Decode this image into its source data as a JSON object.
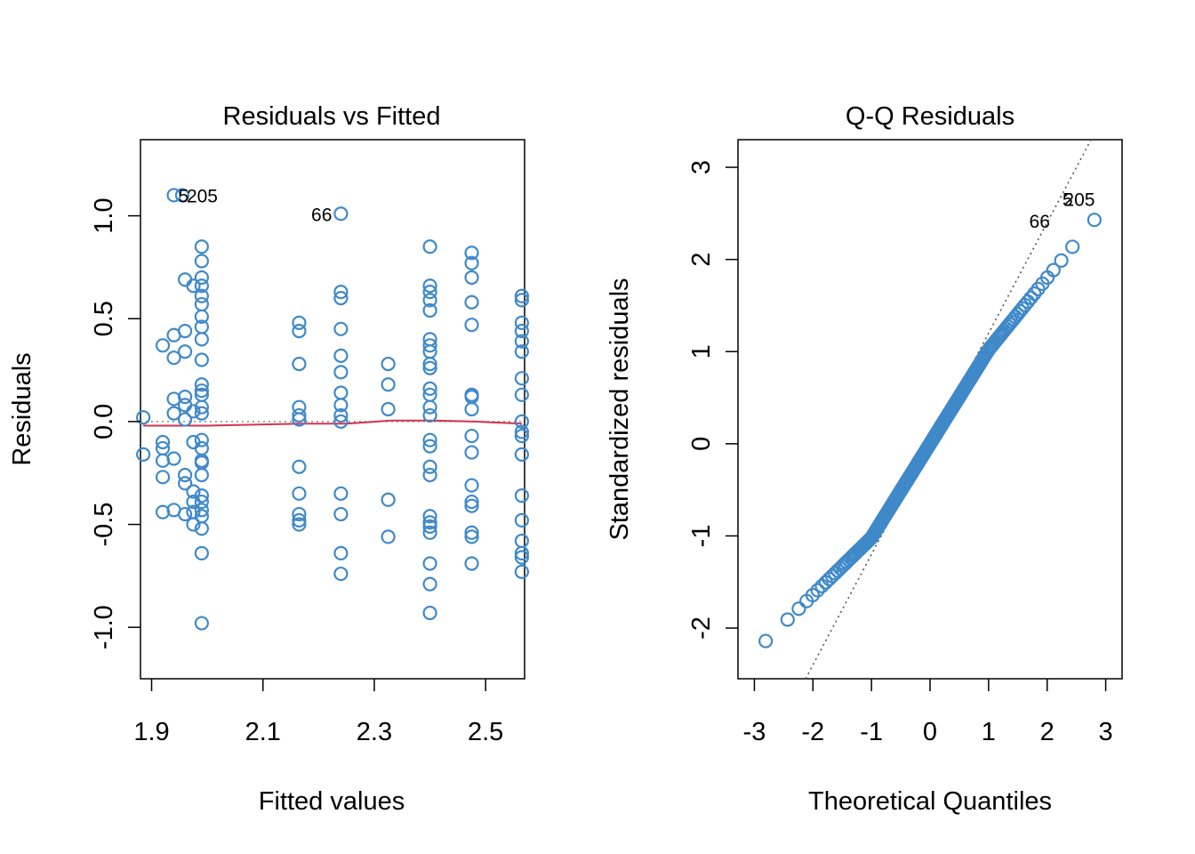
{
  "colors": {
    "points": "#3f89c9",
    "smooth": "#d6324d",
    "reference": "#8c8c8c",
    "qqline": "#555555"
  },
  "chart_data": [
    {
      "type": "scatter",
      "title": "Residuals vs Fitted",
      "xlabel": "Fitted values",
      "ylabel": "Residuals",
      "xlim": [
        1.88,
        2.57
      ],
      "ylim": [
        -1.25,
        1.37
      ],
      "xticks": [
        "1.9",
        "2.1",
        "2.3",
        "2.5"
      ],
      "yticks": [
        "-1.0",
        "-0.5",
        "0.0",
        "0.5",
        "1.0"
      ],
      "reference_line": {
        "y": 0,
        "style": "dotted"
      },
      "smooth_line": [
        [
          1.885,
          -0.02
        ],
        [
          2.0,
          -0.02
        ],
        [
          2.17,
          -0.01
        ],
        [
          2.25,
          -0.01
        ],
        [
          2.33,
          0.005
        ],
        [
          2.4,
          0.005
        ],
        [
          2.48,
          0.0
        ],
        [
          2.565,
          -0.01
        ]
      ],
      "groups": [
        {
          "x": 1.885,
          "y": [
            0.02,
            -0.16
          ]
        },
        {
          "x": 1.92,
          "y": [
            0.37,
            -0.1,
            -0.13,
            -0.19,
            -0.27,
            -0.44
          ]
        },
        {
          "x": 1.94,
          "y": [
            1.1,
            0.42,
            0.31,
            0.11,
            0.04,
            -0.18,
            -0.43
          ]
        },
        {
          "x": 1.955,
          "y": [
            1.1
          ]
        },
        {
          "x": 1.96,
          "y": [
            0.69,
            0.44,
            0.34,
            0.12,
            0.08,
            0.01,
            -0.26,
            -0.3,
            -0.45
          ]
        },
        {
          "x": 1.975,
          "y": [
            0.66,
            0.05,
            -0.1,
            -0.34,
            -0.39,
            -0.44,
            -0.5
          ]
        },
        {
          "x": 1.99,
          "y": [
            0.85,
            0.78,
            0.7,
            0.66,
            0.61,
            0.57,
            0.51,
            0.46,
            0.4,
            0.3,
            0.18,
            0.15,
            0.13,
            0.07,
            0.04,
            -0.09,
            -0.13,
            -0.19,
            -0.2,
            -0.26,
            -0.36,
            -0.39,
            -0.43,
            -0.46,
            -0.52,
            -0.64,
            -0.98
          ]
        },
        {
          "x": 2.165,
          "y": [
            0.48,
            0.44,
            0.28,
            0.07,
            0.03,
            0.01,
            -0.22,
            -0.35,
            -0.45,
            -0.48,
            -0.5
          ]
        },
        {
          "x": 2.24,
          "y": [
            1.01,
            0.63,
            0.6,
            0.45,
            0.32,
            0.24,
            0.14,
            0.08,
            0.03,
            0.0,
            -0.35,
            -0.45,
            -0.64,
            -0.74
          ]
        },
        {
          "x": 2.325,
          "y": [
            0.28,
            0.18,
            0.06,
            -0.38,
            -0.56
          ]
        },
        {
          "x": 2.4,
          "y": [
            0.85,
            0.66,
            0.63,
            0.59,
            0.54,
            0.4,
            0.37,
            0.34,
            0.28,
            0.26,
            0.16,
            0.13,
            0.07,
            0.03,
            -0.09,
            -0.12,
            -0.22,
            -0.26,
            -0.46,
            -0.49,
            -0.51,
            -0.54,
            -0.69,
            -0.79,
            -0.93
          ]
        },
        {
          "x": 2.475,
          "y": [
            0.82,
            0.77,
            0.7,
            0.58,
            0.47,
            0.13,
            0.12,
            0.06,
            -0.07,
            -0.15,
            -0.31,
            -0.39,
            -0.41,
            -0.54,
            -0.56,
            -0.69
          ]
        },
        {
          "x": 2.565,
          "y": [
            0.61,
            0.59,
            0.48,
            0.44,
            0.39,
            0.34,
            0.21,
            0.13,
            0.0,
            -0.05,
            -0.07,
            -0.16,
            -0.36,
            -0.48,
            -0.58,
            -0.64,
            -0.66,
            -0.73
          ]
        }
      ],
      "point_labels": [
        {
          "text": "205",
          "x": 1.955,
          "y": 1.1,
          "side": "right"
        },
        {
          "text": "5",
          "x": 1.94,
          "y": 1.1,
          "side": "right"
        },
        {
          "text": "66",
          "x": 2.24,
          "y": 1.01,
          "side": "left"
        }
      ]
    },
    {
      "type": "scatter",
      "title": "Q-Q Residuals",
      "xlabel": "Theoretical Quantiles",
      "ylabel": "Standardized residuals",
      "xlim": [
        -3.28,
        3.28
      ],
      "ylim": [
        -2.55,
        3.3
      ],
      "xticks": [
        "-3",
        "-2",
        "-1",
        "0",
        "1",
        "2",
        "3"
      ],
      "yticks": [
        "-2",
        "-1",
        "0",
        "1",
        "2",
        "3"
      ],
      "qq_line": {
        "intercept": 0.0,
        "slope": 1.2,
        "style": "dotted"
      },
      "n_points": 200,
      "y_range": [
        -2.35,
        2.65
      ],
      "point_labels": [
        {
          "text": "205",
          "x": 2.55,
          "y": 2.65,
          "side": "top"
        },
        {
          "text": "5",
          "x": 2.35,
          "y": 2.65,
          "side": "top"
        },
        {
          "text": "66",
          "x": 2.2,
          "y": 2.42,
          "side": "left"
        }
      ]
    }
  ]
}
